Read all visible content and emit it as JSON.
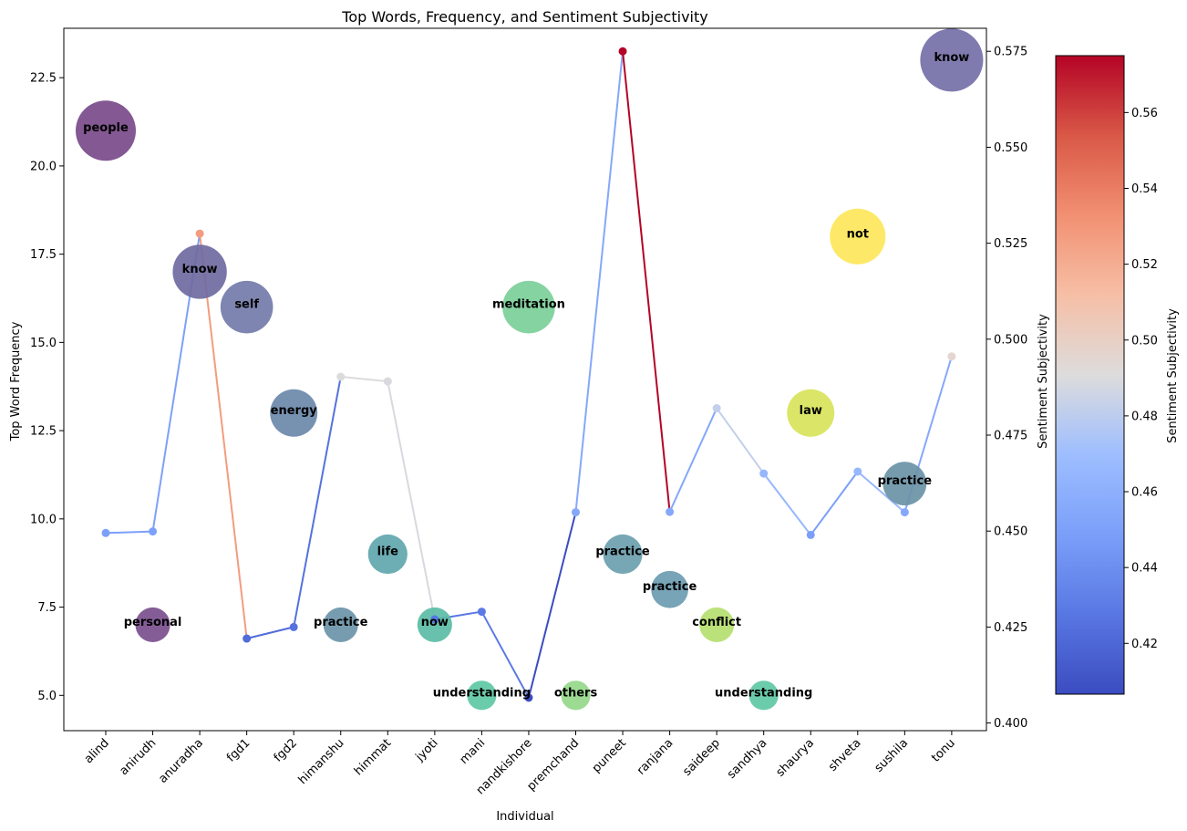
{
  "chart_data": {
    "type": "scatter",
    "title": "Top Words, Frequency, and Sentiment Subjectivity",
    "xlabel": "Individual",
    "ylabel": "Top Word Frequency",
    "y2label": "Sentiment Subjectivity",
    "colorbar_label": "Sentiment Subjectivity",
    "ylim": [
      4.0,
      23.9
    ],
    "y2lim": [
      0.398,
      0.581
    ],
    "colorbar_range": [
      0.4066,
      0.575
    ],
    "colormap": "coolwarm",
    "grid": false,
    "yticks": [
      5.0,
      7.5,
      10.0,
      12.5,
      15.0,
      17.5,
      20.0,
      22.5
    ],
    "ytick_labels": [
      "5.0",
      "7.5",
      "10.0",
      "12.5",
      "15.0",
      "17.5",
      "20.0",
      "22.5"
    ],
    "y2ticks": [
      0.4,
      0.425,
      0.45,
      0.475,
      0.5,
      0.525,
      0.55,
      0.575
    ],
    "y2tick_labels": [
      "0.400",
      "0.425",
      "0.450",
      "0.475",
      "0.500",
      "0.525",
      "0.550",
      "0.575"
    ],
    "colorbar_ticks": [
      0.42,
      0.44,
      0.46,
      0.48,
      0.5,
      0.52,
      0.54,
      0.56
    ],
    "colorbar_tick_labels": [
      "0.42",
      "0.44",
      "0.46",
      "0.48",
      "0.50",
      "0.52",
      "0.54",
      "0.56"
    ],
    "categories": [
      "alind",
      "anirudh",
      "anuradha",
      "fgd1",
      "fgd2",
      "himanshu",
      "himmat",
      "jyoti",
      "mani",
      "nandkishore",
      "premchand",
      "puneet",
      "ranjana",
      "saideep",
      "sandhya",
      "shaurya",
      "shveta",
      "sushila",
      "tonu"
    ],
    "words": [
      "people",
      "personal",
      "know",
      "self",
      "energy",
      "practice",
      "life",
      "now",
      "understanding",
      "meditation",
      "others",
      "practice",
      "practice",
      "conflict",
      "understanding",
      "law",
      "not",
      "practice",
      "know"
    ],
    "frequency": [
      21,
      7,
      17,
      16,
      13,
      7,
      9,
      7,
      5,
      16,
      5,
      9,
      8,
      7,
      5,
      13,
      18,
      11,
      23
    ],
    "bubble_colors": [
      "#7a4a8a",
      "#7a4f8e",
      "#6f6aa0",
      "#737ba9",
      "#6b88aa",
      "#6b94a8",
      "#61a6ae",
      "#5bbca5",
      "#5ec8a5",
      "#7bcf98",
      "#95d88a",
      "#6b9fae",
      "#6b9cb0",
      "#b5de6f",
      "#5ec8a5",
      "#d8e35a",
      "#fde75a",
      "#6a92a6",
      "#7470a8"
    ],
    "subjectivity": [
      0.4495,
      0.4499,
      0.5275,
      0.422,
      0.425,
      0.4902,
      0.489,
      0.427,
      0.429,
      0.4066,
      0.4549,
      0.575,
      0.455,
      0.482,
      0.465,
      0.449,
      0.4655,
      0.4549,
      0.4955
    ]
  }
}
